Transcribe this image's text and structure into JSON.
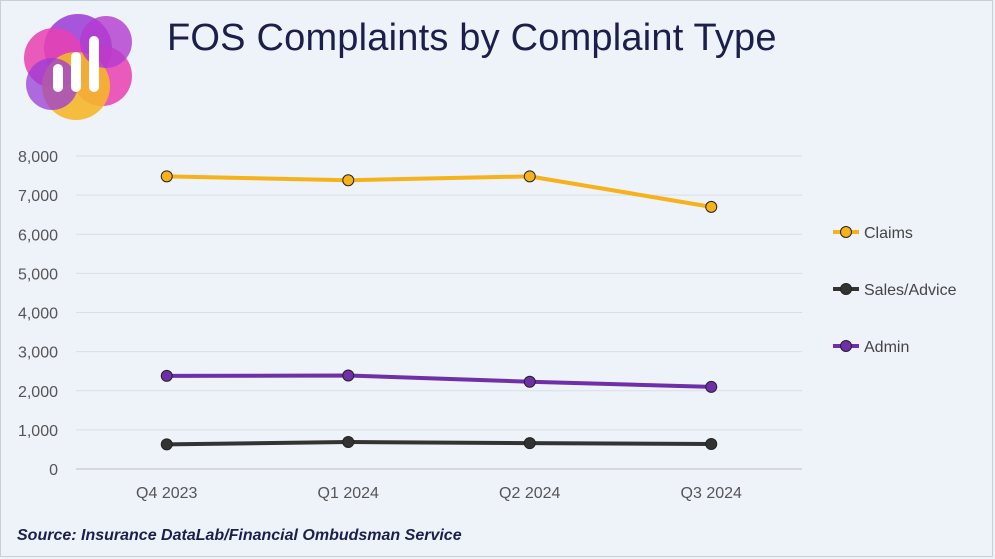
{
  "header": {
    "title": "FOS Complaints by Complaint Type"
  },
  "logo": {
    "icon": "bar-chart-logo-icon",
    "colors": [
      "#f5b72a",
      "#e83fb0",
      "#9a3bd6"
    ]
  },
  "footer": {
    "source": "Source: Insurance DataLab/Financial Ombudsman Service"
  },
  "chart_data": {
    "type": "line",
    "title": "FOS Complaints by Complaint Type",
    "xlabel": "",
    "ylabel": "",
    "categories": [
      "Q4 2023",
      "Q1 2024",
      "Q2 2024",
      "Q3 2024"
    ],
    "ylim": [
      0,
      8000
    ],
    "yticks": [
      0,
      1000,
      2000,
      3000,
      4000,
      5000,
      6000,
      7000,
      8000
    ],
    "ytick_labels": [
      "0",
      "1,000",
      "2,000",
      "3,000",
      "4,000",
      "5,000",
      "6,000",
      "7,000",
      "8,000"
    ],
    "grid": true,
    "legend_position": "right",
    "series": [
      {
        "name": "Claims",
        "values": [
          7480,
          7380,
          7480,
          6700
        ],
        "color": "#f6b21b"
      },
      {
        "name": "Sales/Advice",
        "values": [
          630,
          690,
          660,
          640
        ],
        "color": "#333333"
      },
      {
        "name": "Admin",
        "values": [
          2380,
          2390,
          2230,
          2100
        ],
        "color": "#6f2fa8"
      }
    ]
  }
}
